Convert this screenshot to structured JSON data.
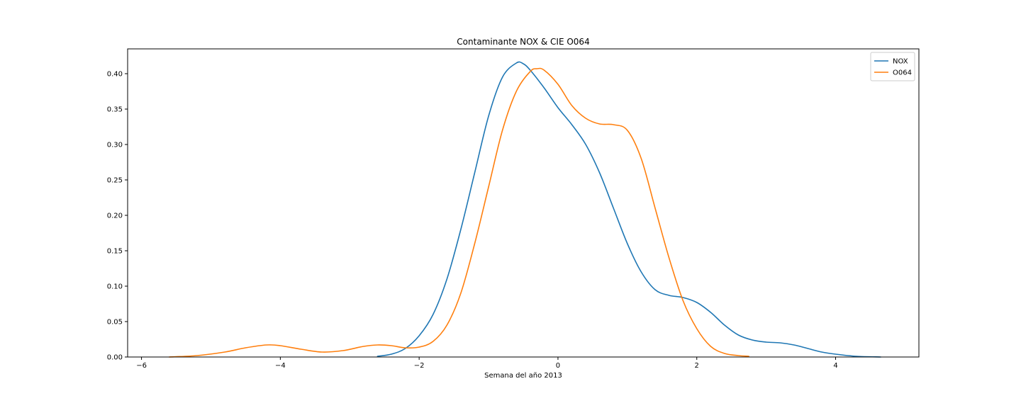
{
  "chart_data": {
    "type": "line",
    "title": "Contaminante NOX & CIE O064",
    "xlabel": "Semana del año 2013",
    "ylabel": "",
    "xlim": [
      -6.2,
      5.2
    ],
    "ylim": [
      0,
      0.435
    ],
    "x_ticks": [
      -6,
      -4,
      -2,
      0,
      2,
      4
    ],
    "x_tick_labels": [
      "−6",
      "−4",
      "−2",
      "0",
      "2",
      "4"
    ],
    "y_ticks": [
      0.0,
      0.05,
      0.1,
      0.15,
      0.2,
      0.25,
      0.3,
      0.35,
      0.4
    ],
    "y_tick_labels": [
      "0.00",
      "0.05",
      "0.10",
      "0.15",
      "0.20",
      "0.25",
      "0.30",
      "0.35",
      "0.40"
    ],
    "grid": false,
    "legend_position": "top-right",
    "series": [
      {
        "name": "NOX",
        "color": "#1f77b4",
        "points": [
          [
            -2.6,
            0.001
          ],
          [
            -2.4,
            0.004
          ],
          [
            -2.2,
            0.012
          ],
          [
            -2.0,
            0.03
          ],
          [
            -1.8,
            0.06
          ],
          [
            -1.6,
            0.11
          ],
          [
            -1.4,
            0.18
          ],
          [
            -1.2,
            0.26
          ],
          [
            -1.0,
            0.34
          ],
          [
            -0.8,
            0.395
          ],
          [
            -0.6,
            0.415
          ],
          [
            -0.5,
            0.414
          ],
          [
            -0.4,
            0.405
          ],
          [
            -0.2,
            0.38
          ],
          [
            0.0,
            0.352
          ],
          [
            0.2,
            0.328
          ],
          [
            0.4,
            0.3
          ],
          [
            0.6,
            0.26
          ],
          [
            0.8,
            0.21
          ],
          [
            1.0,
            0.16
          ],
          [
            1.2,
            0.12
          ],
          [
            1.4,
            0.095
          ],
          [
            1.6,
            0.087
          ],
          [
            1.8,
            0.084
          ],
          [
            2.0,
            0.077
          ],
          [
            2.2,
            0.063
          ],
          [
            2.4,
            0.045
          ],
          [
            2.6,
            0.031
          ],
          [
            2.8,
            0.024
          ],
          [
            3.0,
            0.021
          ],
          [
            3.2,
            0.02
          ],
          [
            3.4,
            0.017
          ],
          [
            3.6,
            0.012
          ],
          [
            3.8,
            0.007
          ],
          [
            4.0,
            0.004
          ],
          [
            4.3,
            0.001
          ],
          [
            4.65,
            0.0
          ]
        ]
      },
      {
        "name": "O064",
        "color": "#ff7f0e",
        "points": [
          [
            -5.6,
            0.0
          ],
          [
            -5.2,
            0.002
          ],
          [
            -4.8,
            0.007
          ],
          [
            -4.5,
            0.013
          ],
          [
            -4.2,
            0.017
          ],
          [
            -4.0,
            0.016
          ],
          [
            -3.7,
            0.011
          ],
          [
            -3.4,
            0.007
          ],
          [
            -3.1,
            0.009
          ],
          [
            -2.8,
            0.015
          ],
          [
            -2.6,
            0.017
          ],
          [
            -2.4,
            0.016
          ],
          [
            -2.2,
            0.013
          ],
          [
            -2.0,
            0.014
          ],
          [
            -1.8,
            0.022
          ],
          [
            -1.6,
            0.045
          ],
          [
            -1.4,
            0.09
          ],
          [
            -1.2,
            0.16
          ],
          [
            -1.0,
            0.24
          ],
          [
            -0.8,
            0.32
          ],
          [
            -0.6,
            0.375
          ],
          [
            -0.4,
            0.403
          ],
          [
            -0.3,
            0.407
          ],
          [
            -0.2,
            0.405
          ],
          [
            0.0,
            0.385
          ],
          [
            0.2,
            0.355
          ],
          [
            0.4,
            0.337
          ],
          [
            0.6,
            0.329
          ],
          [
            0.8,
            0.328
          ],
          [
            1.0,
            0.32
          ],
          [
            1.2,
            0.28
          ],
          [
            1.4,
            0.21
          ],
          [
            1.6,
            0.14
          ],
          [
            1.8,
            0.08
          ],
          [
            2.0,
            0.04
          ],
          [
            2.2,
            0.015
          ],
          [
            2.4,
            0.005
          ],
          [
            2.6,
            0.002
          ],
          [
            2.75,
            0.001
          ]
        ]
      }
    ]
  }
}
